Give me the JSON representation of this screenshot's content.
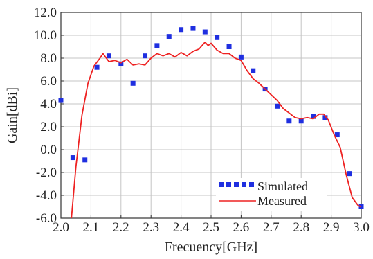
{
  "chart_data": {
    "type": "scatter",
    "xlabel": "Frecuency[GHz]",
    "ylabel": "Gain[dBi]",
    "xlim": [
      2.0,
      3.0
    ],
    "ylim": [
      -6.0,
      12.0
    ],
    "x_ticks": [
      "2.0",
      "2.1",
      "2.2",
      "2.3",
      "2.4",
      "2.5",
      "2.6",
      "2.7",
      "2.8",
      "2.9",
      "3.0"
    ],
    "y_ticks": [
      "-6.0",
      "-4.0",
      "-2.0",
      "0.0",
      "2.0",
      "4.0",
      "6.0",
      "8.0",
      "10.0",
      "12.0"
    ],
    "grid": true,
    "legend_position": "bottom-right",
    "series": [
      {
        "name": "Simulated",
        "style": "markers",
        "color": "#1f2fe0",
        "points": [
          [
            2.0,
            4.3
          ],
          [
            2.04,
            -0.7
          ],
          [
            2.08,
            -0.9
          ],
          [
            2.12,
            7.2
          ],
          [
            2.16,
            8.2
          ],
          [
            2.2,
            7.5
          ],
          [
            2.24,
            5.8
          ],
          [
            2.28,
            8.2
          ],
          [
            2.32,
            9.1
          ],
          [
            2.36,
            9.9
          ],
          [
            2.4,
            10.5
          ],
          [
            2.44,
            10.6
          ],
          [
            2.48,
            10.3
          ],
          [
            2.52,
            9.8
          ],
          [
            2.56,
            9.0
          ],
          [
            2.6,
            8.1
          ],
          [
            2.64,
            6.9
          ],
          [
            2.68,
            5.3
          ],
          [
            2.72,
            3.8
          ],
          [
            2.76,
            2.5
          ],
          [
            2.8,
            2.5
          ],
          [
            2.84,
            2.9
          ],
          [
            2.88,
            2.8
          ],
          [
            2.92,
            1.3
          ],
          [
            2.96,
            -2.1
          ],
          [
            3.0,
            -5.0
          ]
        ]
      },
      {
        "name": "Measured",
        "style": "line",
        "color": "#ee2222",
        "points": [
          [
            2.035,
            -6.0
          ],
          [
            2.05,
            -1.5
          ],
          [
            2.07,
            3.0
          ],
          [
            2.09,
            5.8
          ],
          [
            2.11,
            7.3
          ],
          [
            2.13,
            8.0
          ],
          [
            2.14,
            8.4
          ],
          [
            2.16,
            7.7
          ],
          [
            2.18,
            7.8
          ],
          [
            2.2,
            7.6
          ],
          [
            2.22,
            7.9
          ],
          [
            2.24,
            7.4
          ],
          [
            2.26,
            7.5
          ],
          [
            2.28,
            7.4
          ],
          [
            2.3,
            8.0
          ],
          [
            2.32,
            8.4
          ],
          [
            2.34,
            8.2
          ],
          [
            2.36,
            8.4
          ],
          [
            2.38,
            8.1
          ],
          [
            2.4,
            8.5
          ],
          [
            2.42,
            8.2
          ],
          [
            2.44,
            8.6
          ],
          [
            2.46,
            8.8
          ],
          [
            2.48,
            9.4
          ],
          [
            2.49,
            9.1
          ],
          [
            2.5,
            9.3
          ],
          [
            2.52,
            8.7
          ],
          [
            2.54,
            8.4
          ],
          [
            2.56,
            8.4
          ],
          [
            2.58,
            8.0
          ],
          [
            2.6,
            7.8
          ],
          [
            2.62,
            6.9
          ],
          [
            2.64,
            6.2
          ],
          [
            2.66,
            5.8
          ],
          [
            2.68,
            5.3
          ],
          [
            2.7,
            4.8
          ],
          [
            2.72,
            4.3
          ],
          [
            2.74,
            3.6
          ],
          [
            2.76,
            3.2
          ],
          [
            2.78,
            2.8
          ],
          [
            2.8,
            2.7
          ],
          [
            2.82,
            2.8
          ],
          [
            2.84,
            2.7
          ],
          [
            2.86,
            3.1
          ],
          [
            2.875,
            3.1
          ],
          [
            2.89,
            2.6
          ],
          [
            2.91,
            1.3
          ],
          [
            2.93,
            0.2
          ],
          [
            2.95,
            -2.2
          ],
          [
            2.97,
            -4.2
          ],
          [
            2.99,
            -4.9
          ],
          [
            3.0,
            -5.0
          ]
        ]
      }
    ]
  }
}
